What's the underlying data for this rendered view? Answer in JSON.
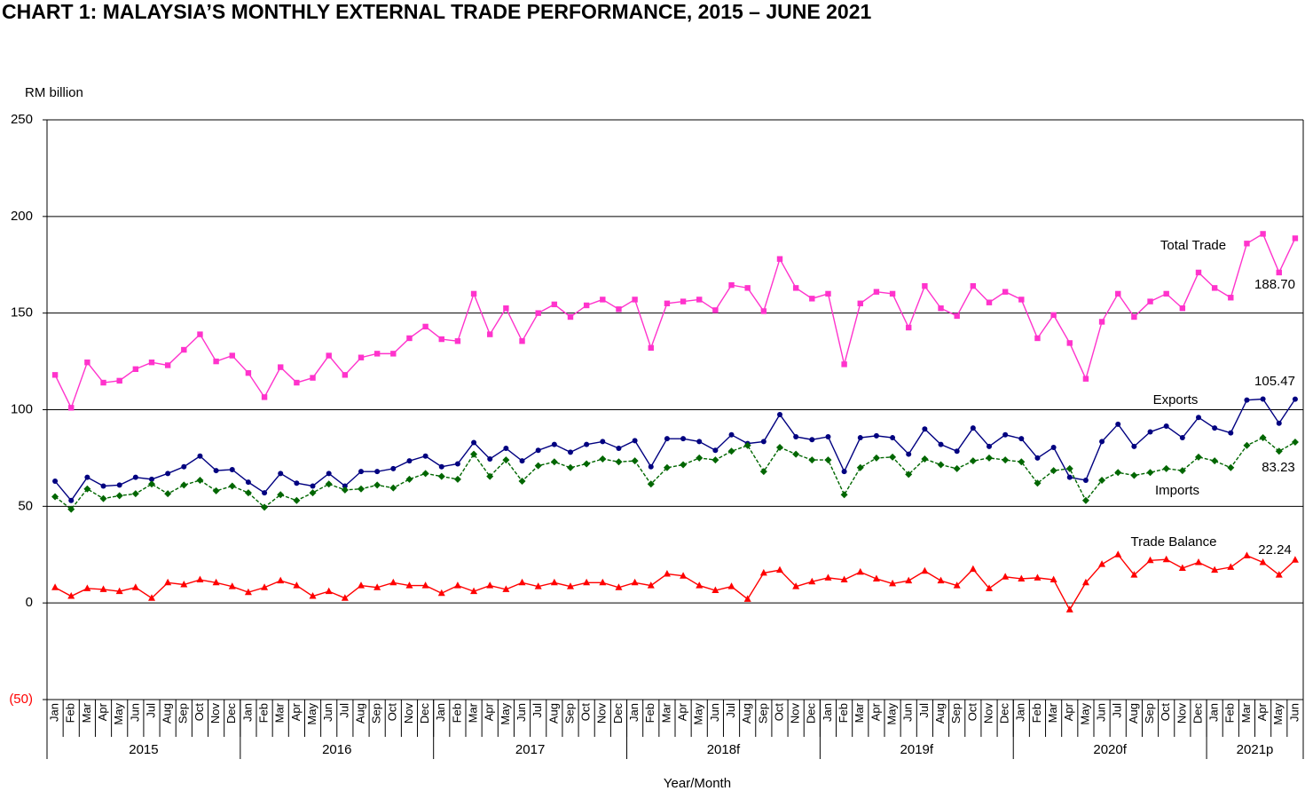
{
  "chart_data": {
    "type": "line",
    "title": "CHART 1: MALAYSIA’S MONTHLY EXTERNAL TRADE PERFORMANCE, 2015 – JUNE 2021",
    "y_label": "RM billion",
    "x_label": "Year/Month",
    "categories": [
      "Jan",
      "Feb",
      "Mar",
      "Apr",
      "May",
      "Jun",
      "Jul",
      "Aug",
      "Sep",
      "Oct",
      "Nov",
      "Dec",
      "Jan",
      "Feb",
      "Mar",
      "Apr",
      "May",
      "Jun",
      "Jul",
      "Aug",
      "Sep",
      "Oct",
      "Nov",
      "Dec",
      "Jan",
      "Feb",
      "Mar",
      "Apr",
      "May",
      "Jun",
      "Jul",
      "Aug",
      "Sep",
      "Oct",
      "Nov",
      "Dec",
      "Jan",
      "Feb",
      "Mar",
      "Apr",
      "May",
      "Jun",
      "Jul",
      "Aug",
      "Sep",
      "Oct",
      "Nov",
      "Dec",
      "Jan",
      "Feb",
      "Mar",
      "Apr",
      "May",
      "Jun",
      "Jul",
      "Aug",
      "Sep",
      "Oct",
      "Nov",
      "Dec",
      "Jan",
      "Feb",
      "Mar",
      "Apr",
      "May",
      "Jun",
      "Jul",
      "Aug",
      "Sep",
      "Oct",
      "Nov",
      "Dec",
      "Jan",
      "Feb",
      "Mar",
      "Apr",
      "May",
      "Jun"
    ],
    "year_labels": [
      "2015",
      "2016",
      "2017",
      "2018f",
      "2019f",
      "2020f",
      "2021p"
    ],
    "ylim": [
      -50,
      250
    ],
    "yticks": [
      {
        "value": -50,
        "label": "(50)"
      },
      0,
      50,
      100,
      150,
      200,
      250
    ],
    "grid": true,
    "series": [
      {
        "name": "Total Trade",
        "color": "#ff33cc",
        "marker": "square",
        "dash": false,
        "values": [
          118,
          101,
          124.5,
          114,
          115,
          121,
          124.5,
          123,
          131,
          139,
          125,
          128,
          119,
          106.5,
          122,
          114,
          116.5,
          128,
          118,
          127,
          129,
          129,
          137,
          143,
          136.5,
          135.5,
          160,
          139,
          152.5,
          135.5,
          150,
          154.5,
          148,
          154,
          157,
          152,
          157,
          132,
          155,
          156,
          157,
          151.5,
          164.5,
          163,
          151,
          178,
          163,
          157.5,
          160,
          123.5,
          155,
          161,
          160,
          142.5,
          164,
          152.5,
          148.5,
          164,
          155.5,
          161,
          157,
          137,
          149,
          134.5,
          116,
          145.5,
          160,
          148,
          156,
          160,
          152.5,
          171,
          163,
          158,
          186,
          191,
          171,
          188.7
        ],
        "value_labels": [
          null,
          null,
          null,
          null,
          null,
          null,
          null,
          null,
          null,
          null,
          null,
          null,
          null,
          null,
          null,
          null,
          null,
          null,
          null,
          null,
          null,
          null,
          null,
          null,
          null,
          null,
          null,
          null,
          null,
          null,
          null,
          null,
          null,
          null,
          null,
          null,
          null,
          null,
          null,
          null,
          null,
          null,
          null,
          null,
          null,
          null,
          null,
          null,
          null,
          null,
          null,
          null,
          null,
          null,
          null,
          null,
          null,
          null,
          null,
          null,
          null,
          null,
          null,
          null,
          null,
          null,
          null,
          null,
          null,
          null,
          null,
          null,
          null,
          null,
          null,
          null,
          null,
          "188.70"
        ]
      },
      {
        "name": "Exports",
        "color": "#000080",
        "marker": "circle",
        "dash": false,
        "values": [
          63,
          53,
          65,
          60.5,
          61,
          65,
          64,
          67,
          70.5,
          76,
          68.5,
          69,
          62.5,
          57,
          67,
          62,
          60.5,
          67,
          60.5,
          68,
          68,
          69.5,
          73.5,
          76,
          70.5,
          72,
          83,
          74.5,
          80,
          73.5,
          79,
          82,
          78,
          82,
          83.5,
          80,
          84,
          70.5,
          85,
          85,
          83.5,
          79,
          87,
          82.5,
          83.5,
          97.5,
          86,
          84.5,
          86,
          68,
          85.5,
          86.5,
          85.5,
          77,
          90,
          82,
          78.5,
          90.5,
          81,
          87,
          85,
          75,
          80.5,
          65,
          63.5,
          83.5,
          92.5,
          81,
          88.5,
          91.5,
          85.5,
          96,
          90.5,
          88,
          105,
          105.5,
          93,
          105.47
        ]
      },
      {
        "name": "Imports",
        "color": "#006600",
        "marker": "diamond",
        "dash": true,
        "values": [
          55,
          48.5,
          59,
          54,
          55.5,
          56.5,
          61.5,
          56.5,
          61,
          63.5,
          58,
          60.5,
          57,
          49.5,
          56,
          53,
          57,
          61.5,
          58.5,
          59,
          61,
          59.5,
          64,
          67,
          65.5,
          64,
          77,
          65.5,
          74,
          63,
          71,
          73,
          70,
          72,
          74.5,
          73,
          73.5,
          61.5,
          70,
          71.5,
          75,
          74,
          78.5,
          81.5,
          68,
          80.5,
          77,
          74,
          74,
          56,
          70,
          75,
          75.5,
          66.5,
          74.5,
          71.5,
          69.5,
          73.5,
          75,
          74,
          73,
          62,
          68.5,
          69.5,
          53,
          63.5,
          67.5,
          66,
          67.5,
          69.5,
          68.5,
          75.5,
          73.5,
          70,
          81.5,
          85.5,
          78.5,
          83.23
        ]
      },
      {
        "name": "Trade Balance",
        "color": "#ff0000",
        "marker": "triangle",
        "dash": false,
        "values": [
          8,
          3.5,
          7.5,
          7,
          6,
          8,
          2.5,
          10.5,
          9.5,
          12,
          10.5,
          8.5,
          5.5,
          8,
          11.5,
          9,
          3.5,
          6,
          2.5,
          9,
          8,
          10.5,
          9,
          9,
          5,
          9,
          6,
          9,
          7,
          10.5,
          8.5,
          10.5,
          8.5,
          10.5,
          10.5,
          8,
          10.5,
          9,
          15,
          14,
          9,
          6.5,
          8.5,
          2,
          15.5,
          17,
          8.5,
          11,
          13,
          12,
          16,
          12.5,
          10,
          11.5,
          16.5,
          11.5,
          9,
          17.5,
          7.5,
          13.5,
          12.5,
          13,
          12,
          -3.5,
          10.5,
          20,
          25,
          14.5,
          22,
          22.5,
          18,
          21,
          17,
          18.5,
          24.5,
          21,
          14.5,
          22.24
        ]
      }
    ]
  }
}
